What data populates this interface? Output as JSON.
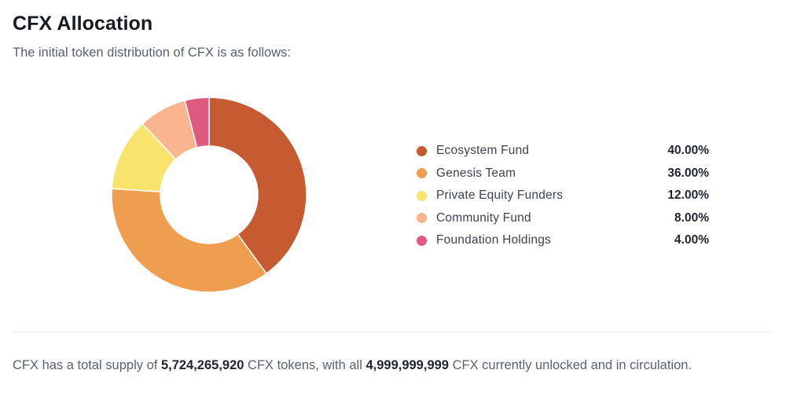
{
  "header": {
    "title": "CFX Allocation",
    "subtitle": "The initial token distribution of CFX is as follows:"
  },
  "chart_data": {
    "type": "pie",
    "title": "",
    "donut": true,
    "legend_position": "right",
    "slices": [
      {
        "label": "Ecosystem Fund",
        "value": 40.0,
        "display": "40.00%",
        "color": "#c65a30"
      },
      {
        "label": "Genesis Team",
        "value": 36.0,
        "display": "36.00%",
        "color": "#ee9e4e"
      },
      {
        "label": "Private Equity Funders",
        "value": 12.0,
        "display": "12.00%",
        "color": "#f8e46c"
      },
      {
        "label": "Community Fund",
        "value": 8.0,
        "display": "8.00%",
        "color": "#fbb58e"
      },
      {
        "label": "Foundation Holdings",
        "value": 4.0,
        "display": "4.00%",
        "color": "#de5a80"
      }
    ]
  },
  "footer": {
    "text_1": "CFX has a total supply of ",
    "total_supply": "5,724,265,920",
    "text_2": " CFX tokens, with all ",
    "unlocked": "4,999,999,999",
    "text_3": " CFX currently unlocked and in circulation."
  }
}
